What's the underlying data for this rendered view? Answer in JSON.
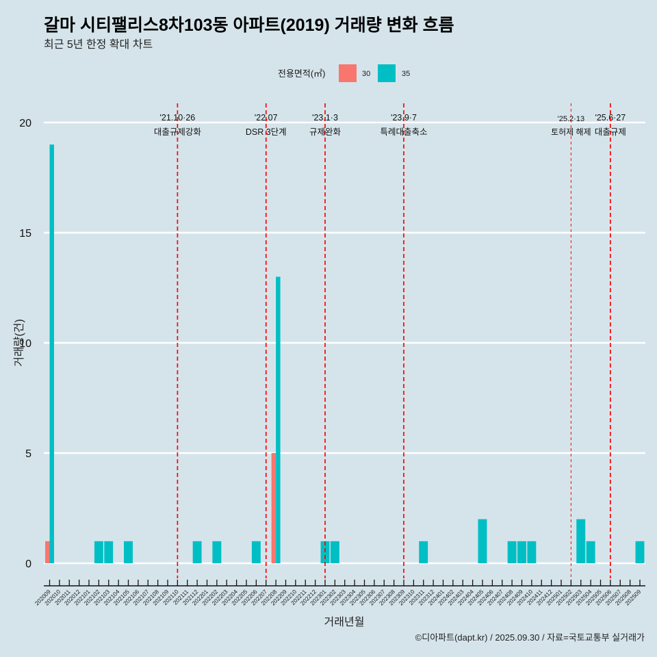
{
  "chart_data": {
    "type": "bar",
    "title": "갈마 시티팰리스8차103동 아파트(2019) 거래량 변화 흐름",
    "subtitle": "최근 5년 한정 확대 차트",
    "xlabel": "거래년월",
    "ylabel": "거래량(건)",
    "ylim": [
      0,
      20
    ],
    "yticks": [
      0,
      5,
      10,
      15,
      20
    ],
    "grid": true,
    "legend_title": "전용면적(㎡)",
    "legend_position": "top",
    "caption": "©디아파트(dapt.kr) / 2025.09.30 / 자료=국토교통부 실거래가",
    "categories": [
      "202009",
      "202010",
      "202011",
      "202012",
      "202101",
      "202102",
      "202103",
      "202104",
      "202105",
      "202106",
      "202107",
      "202108",
      "202109",
      "202110",
      "202111",
      "202112",
      "202201",
      "202202",
      "202203",
      "202204",
      "202205",
      "202206",
      "202207",
      "202208",
      "202209",
      "202210",
      "202211",
      "202212",
      "202301",
      "202302",
      "202303",
      "202304",
      "202305",
      "202306",
      "202307",
      "202308",
      "202309",
      "202310",
      "202311",
      "202312",
      "202401",
      "202402",
      "202403",
      "202404",
      "202405",
      "202406",
      "202407",
      "202408",
      "202409",
      "202410",
      "202411",
      "202412",
      "202501",
      "202502",
      "202503",
      "202504",
      "202505",
      "202506",
      "202507",
      "202508",
      "202509"
    ],
    "series": [
      {
        "name": "30",
        "color": "#F8766D",
        "values": [
          1,
          null,
          null,
          null,
          null,
          null,
          null,
          null,
          null,
          null,
          null,
          null,
          null,
          null,
          null,
          null,
          null,
          null,
          null,
          null,
          null,
          null,
          null,
          5,
          null,
          null,
          null,
          null,
          null,
          null,
          null,
          null,
          null,
          null,
          null,
          null,
          null,
          null,
          null,
          null,
          null,
          null,
          null,
          null,
          null,
          null,
          null,
          null,
          null,
          null,
          null,
          null,
          null,
          null,
          null,
          null,
          null,
          null,
          null,
          null,
          null
        ]
      },
      {
        "name": "35",
        "color": "#00BFC4",
        "values": [
          19,
          null,
          null,
          null,
          null,
          1,
          1,
          null,
          1,
          null,
          null,
          null,
          null,
          null,
          null,
          1,
          null,
          1,
          null,
          null,
          null,
          1,
          null,
          13,
          null,
          null,
          null,
          null,
          1,
          1,
          null,
          null,
          null,
          null,
          null,
          null,
          null,
          null,
          1,
          null,
          null,
          null,
          null,
          null,
          2,
          null,
          null,
          1,
          1,
          1,
          null,
          null,
          null,
          null,
          2,
          1,
          null,
          null,
          null,
          null,
          1
        ]
      }
    ],
    "annotations": [
      {
        "x": "202110",
        "date": "'21.10·26",
        "label": "대출규제강화",
        "style": "thick",
        "color": "#ff0000"
      },
      {
        "x": "202207",
        "date": "'22.07",
        "label": "DSR 3단계",
        "style": "thick",
        "color": "#ff0000"
      },
      {
        "x": "202301",
        "date": "'23.1·3",
        "label": "규제완화",
        "style": "thick",
        "color": "#ff0000"
      },
      {
        "x": "202309",
        "date": "'23.9·7",
        "label": "특례대출축소",
        "style": "thick",
        "color": "#ff0000"
      },
      {
        "x": "202502",
        "date": "'25.2·13",
        "label": "토허제 해제",
        "style": "thin",
        "color": "#ff0000"
      },
      {
        "x": "202506",
        "date": "'25.6·27",
        "label": "대출규제",
        "style": "thick",
        "color": "#ff0000"
      }
    ]
  }
}
